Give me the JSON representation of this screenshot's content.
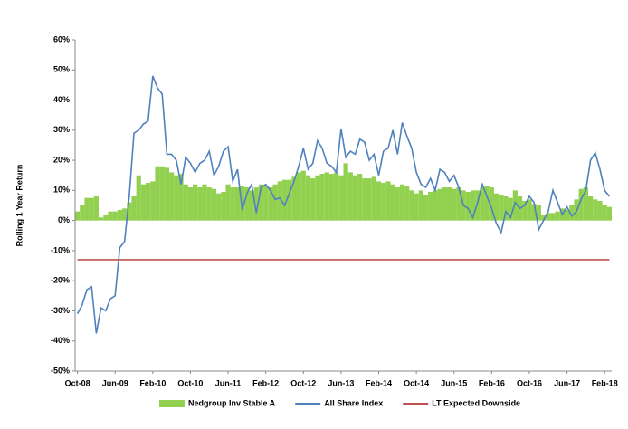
{
  "chart_data": {
    "type": "combo",
    "y_label": "Rolling 1 Year Return",
    "categories": [
      "Oct-08",
      null,
      null,
      null,
      null,
      null,
      null,
      null,
      "Jun-09",
      null,
      null,
      null,
      null,
      null,
      null,
      null,
      "Feb-10",
      null,
      null,
      null,
      null,
      null,
      null,
      null,
      "Oct-10",
      null,
      null,
      null,
      null,
      null,
      null,
      null,
      "Jun-11",
      null,
      null,
      null,
      null,
      null,
      null,
      null,
      "Feb-12",
      null,
      null,
      null,
      null,
      null,
      null,
      null,
      "Oct-12",
      null,
      null,
      null,
      null,
      null,
      null,
      null,
      "Jun-13",
      null,
      null,
      null,
      null,
      null,
      null,
      null,
      "Feb-14",
      null,
      null,
      null,
      null,
      null,
      null,
      null,
      "Oct-14",
      null,
      null,
      null,
      null,
      null,
      null,
      null,
      "Jun-15",
      null,
      null,
      null,
      null,
      null,
      null,
      null,
      "Feb-16",
      null,
      null,
      null,
      null,
      null,
      null,
      null,
      "Oct-16",
      null,
      null,
      null,
      null,
      null,
      null,
      null,
      "Jun-17",
      null,
      null,
      null,
      null,
      null,
      null,
      null,
      "Feb-18",
      null
    ],
    "series": [
      {
        "name": "Nedgroup Inv Stable A",
        "type": "bar",
        "color": "#92d050",
        "values": [
          3,
          5,
          7.5,
          7.5,
          8,
          1,
          2,
          3,
          3,
          3.5,
          4,
          6,
          8,
          15,
          12,
          12.5,
          13,
          18,
          18,
          17.5,
          16,
          15,
          15.5,
          12,
          11,
          12,
          11,
          12,
          11,
          10.5,
          9,
          9.5,
          12,
          11,
          11,
          11.5,
          11,
          10,
          11,
          12,
          11.5,
          11,
          12,
          13,
          13.5,
          13.5,
          14.5,
          16,
          16.5,
          15,
          14,
          15,
          15.5,
          16,
          15.5,
          16,
          15,
          19,
          16,
          15,
          15.5,
          14,
          14,
          14.5,
          13,
          12.5,
          13,
          12,
          11,
          12,
          11.5,
          10,
          9,
          10,
          8.5,
          9.5,
          10,
          10.5,
          11,
          11,
          10.5,
          11,
          10,
          9.5,
          10,
          10,
          11,
          11.5,
          11,
          9,
          8.5,
          8,
          7.5,
          10,
          8,
          6.5,
          7,
          5.5,
          5,
          2,
          2.5,
          2.5,
          3,
          4,
          3.5,
          5,
          7,
          10.5,
          11,
          8,
          7,
          6.5,
          5,
          4.5
        ]
      },
      {
        "name": "All Share Index",
        "type": "line",
        "color": "#4f81bd",
        "values": [
          -31,
          -28,
          -23,
          -22,
          -37.5,
          -29,
          -30,
          -26,
          -25,
          -9,
          -7,
          8,
          29,
          30,
          32,
          33,
          48,
          44,
          42,
          22,
          22,
          20,
          12,
          21,
          19,
          16,
          19,
          20,
          23,
          15,
          18,
          23,
          24.5,
          13,
          17,
          3.5,
          9,
          12,
          2.5,
          11,
          12,
          10,
          7,
          7.5,
          5,
          9,
          13,
          18,
          24,
          17,
          19,
          26.5,
          24,
          19,
          18,
          16,
          30.5,
          21,
          23,
          22,
          27,
          26,
          20,
          22,
          15,
          23,
          24,
          30,
          22,
          32.5,
          28,
          24,
          16,
          12,
          11,
          14,
          10,
          17,
          16,
          13,
          15,
          11,
          5,
          4,
          1,
          6,
          12,
          8,
          4,
          -1,
          -4,
          3,
          1,
          6,
          4,
          5,
          8,
          6,
          -3,
          0,
          3,
          10,
          6,
          2,
          4.5,
          1.5,
          3,
          7,
          10,
          20,
          22.5,
          17,
          10,
          8
        ]
      },
      {
        "name": "LT Expected Downside",
        "type": "line",
        "color": "#c0504d",
        "values": [
          -13,
          -13,
          -13,
          -13,
          -13,
          -13,
          -13,
          -13,
          -13,
          -13,
          -13,
          -13,
          -13,
          -13,
          -13,
          -13,
          -13,
          -13,
          -13,
          -13,
          -13,
          -13,
          -13,
          -13,
          -13,
          -13,
          -13,
          -13,
          -13,
          -13,
          -13,
          -13,
          -13,
          -13,
          -13,
          -13,
          -13,
          -13,
          -13,
          -13,
          -13,
          -13,
          -13,
          -13,
          -13,
          -13,
          -13,
          -13,
          -13,
          -13,
          -13,
          -13,
          -13,
          -13,
          -13,
          -13,
          -13,
          -13,
          -13,
          -13,
          -13,
          -13,
          -13,
          -13,
          -13,
          -13,
          -13,
          -13,
          -13,
          -13,
          -13,
          -13,
          -13,
          -13,
          -13,
          -13,
          -13,
          -13,
          -13,
          -13,
          -13,
          -13,
          -13,
          -13,
          -13,
          -13,
          -13,
          -13,
          -13,
          -13,
          -13,
          -13,
          -13,
          -13,
          -13,
          -13,
          -13,
          -13,
          -13,
          -13,
          -13,
          -13,
          -13,
          -13,
          -13,
          -13,
          -13,
          -13,
          -13,
          -13,
          -13,
          -13,
          -13,
          -13
        ]
      }
    ],
    "ylim": [
      -50,
      60
    ],
    "yticks": [
      {
        "value": -50,
        "label": "-50%"
      },
      {
        "value": -40,
        "label": "-40%"
      },
      {
        "value": -30,
        "label": "-30%"
      },
      {
        "value": -20,
        "label": "-20%"
      },
      {
        "value": -10,
        "label": "-10%"
      },
      {
        "value": 0,
        "label": "0%"
      },
      {
        "value": 10,
        "label": "10%"
      },
      {
        "value": 20,
        "label": "20%"
      },
      {
        "value": 30,
        "label": "30%"
      },
      {
        "value": 40,
        "label": "40%"
      },
      {
        "value": 50,
        "label": "50%"
      },
      {
        "value": 60,
        "label": "60%"
      }
    ],
    "grid": false,
    "legend": "bottom"
  }
}
